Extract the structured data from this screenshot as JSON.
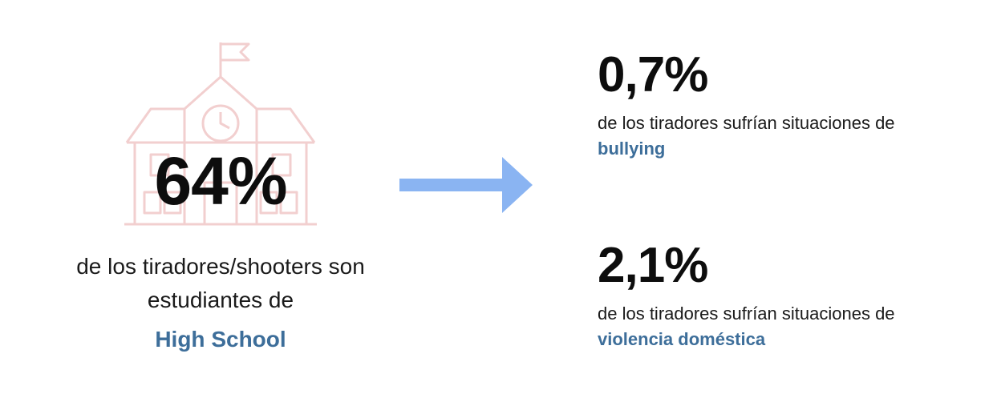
{
  "colors": {
    "highlight": "#3d6e9a",
    "icon_stroke": "#f2cfcf",
    "arrow": "#8ab4f2"
  },
  "icons": {
    "school": "school-building-icon",
    "arrow": "arrow-right-icon"
  },
  "left": {
    "stat": "64%",
    "description_line1": "de los tiradores/shooters son",
    "description_line2": "estudiantes de",
    "highlight": "High School"
  },
  "right": {
    "items": [
      {
        "stat": "0,7%",
        "description": "de los tiradores sufrían situaciones de",
        "highlight": "bullying"
      },
      {
        "stat": "2,1%",
        "description": "de los tiradores sufrían situaciones de",
        "highlight": "violencia doméstica"
      }
    ]
  }
}
